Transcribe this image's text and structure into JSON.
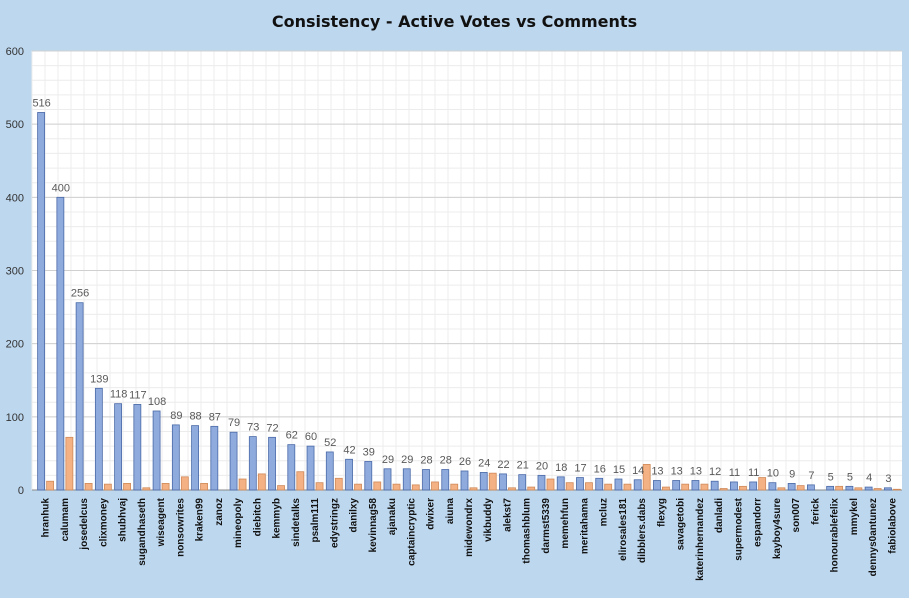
{
  "chart_data": {
    "type": "bar",
    "title": "Consistency - Active Votes vs Comments",
    "xlabel": "",
    "ylabel": "",
    "ylim": [
      0,
      600
    ],
    "yticks": [
      0,
      100,
      200,
      300,
      400,
      500,
      600
    ],
    "grid": true,
    "legend": "none",
    "categories": [
      "hranhuk",
      "calumam",
      "josedelcus",
      "clixmoney",
      "shubhvaj",
      "sugandhaseth",
      "wiseagent",
      "nonsowrites",
      "kraken99",
      "zanoz",
      "mineopoly",
      "diebitch",
      "kemmyb",
      "sindetalks",
      "psalm111",
      "edystringz",
      "danilxy",
      "kevinnag58",
      "ajanaku",
      "captaincryptic",
      "dwixer",
      "aiuna",
      "midewondrx",
      "vikbuddy",
      "alekst7",
      "thomashblum",
      "darmst5339",
      "memehfun",
      "meritahama",
      "mcluz",
      "elirosales181",
      "dibblers.dabs",
      "flexyg",
      "savagetobi",
      "katerinhernandez",
      "danladi",
      "supermodest",
      "espandorr",
      "kayboy4sure",
      "son007",
      "ferick",
      "honourablefelix",
      "mmykel",
      "dennys0antunez",
      "fabiolabove"
    ],
    "series": [
      {
        "name": "",
        "color": "#8faadc",
        "values": [
          516,
          400,
          256,
          139,
          118,
          117,
          108,
          89,
          88,
          87,
          79,
          73,
          72,
          62,
          60,
          52,
          42,
          39,
          29,
          29,
          28,
          28,
          26,
          24,
          22,
          21,
          20,
          18,
          17,
          16,
          15,
          14,
          13,
          13,
          13,
          12,
          11,
          11,
          10,
          9,
          7,
          5,
          5,
          4,
          3
        ]
      },
      {
        "name": "",
        "color": "#f4b183",
        "values": [
          12,
          72,
          9,
          8,
          9,
          3,
          9,
          18,
          9,
          0,
          15,
          22,
          6,
          25,
          10,
          16,
          8,
          11,
          8,
          7,
          11,
          8,
          3,
          23,
          3,
          4,
          15,
          10,
          10,
          8,
          8,
          35,
          4,
          8,
          8,
          2,
          5,
          17,
          3,
          6,
          0,
          5,
          3,
          2,
          1
        ]
      }
    ]
  }
}
